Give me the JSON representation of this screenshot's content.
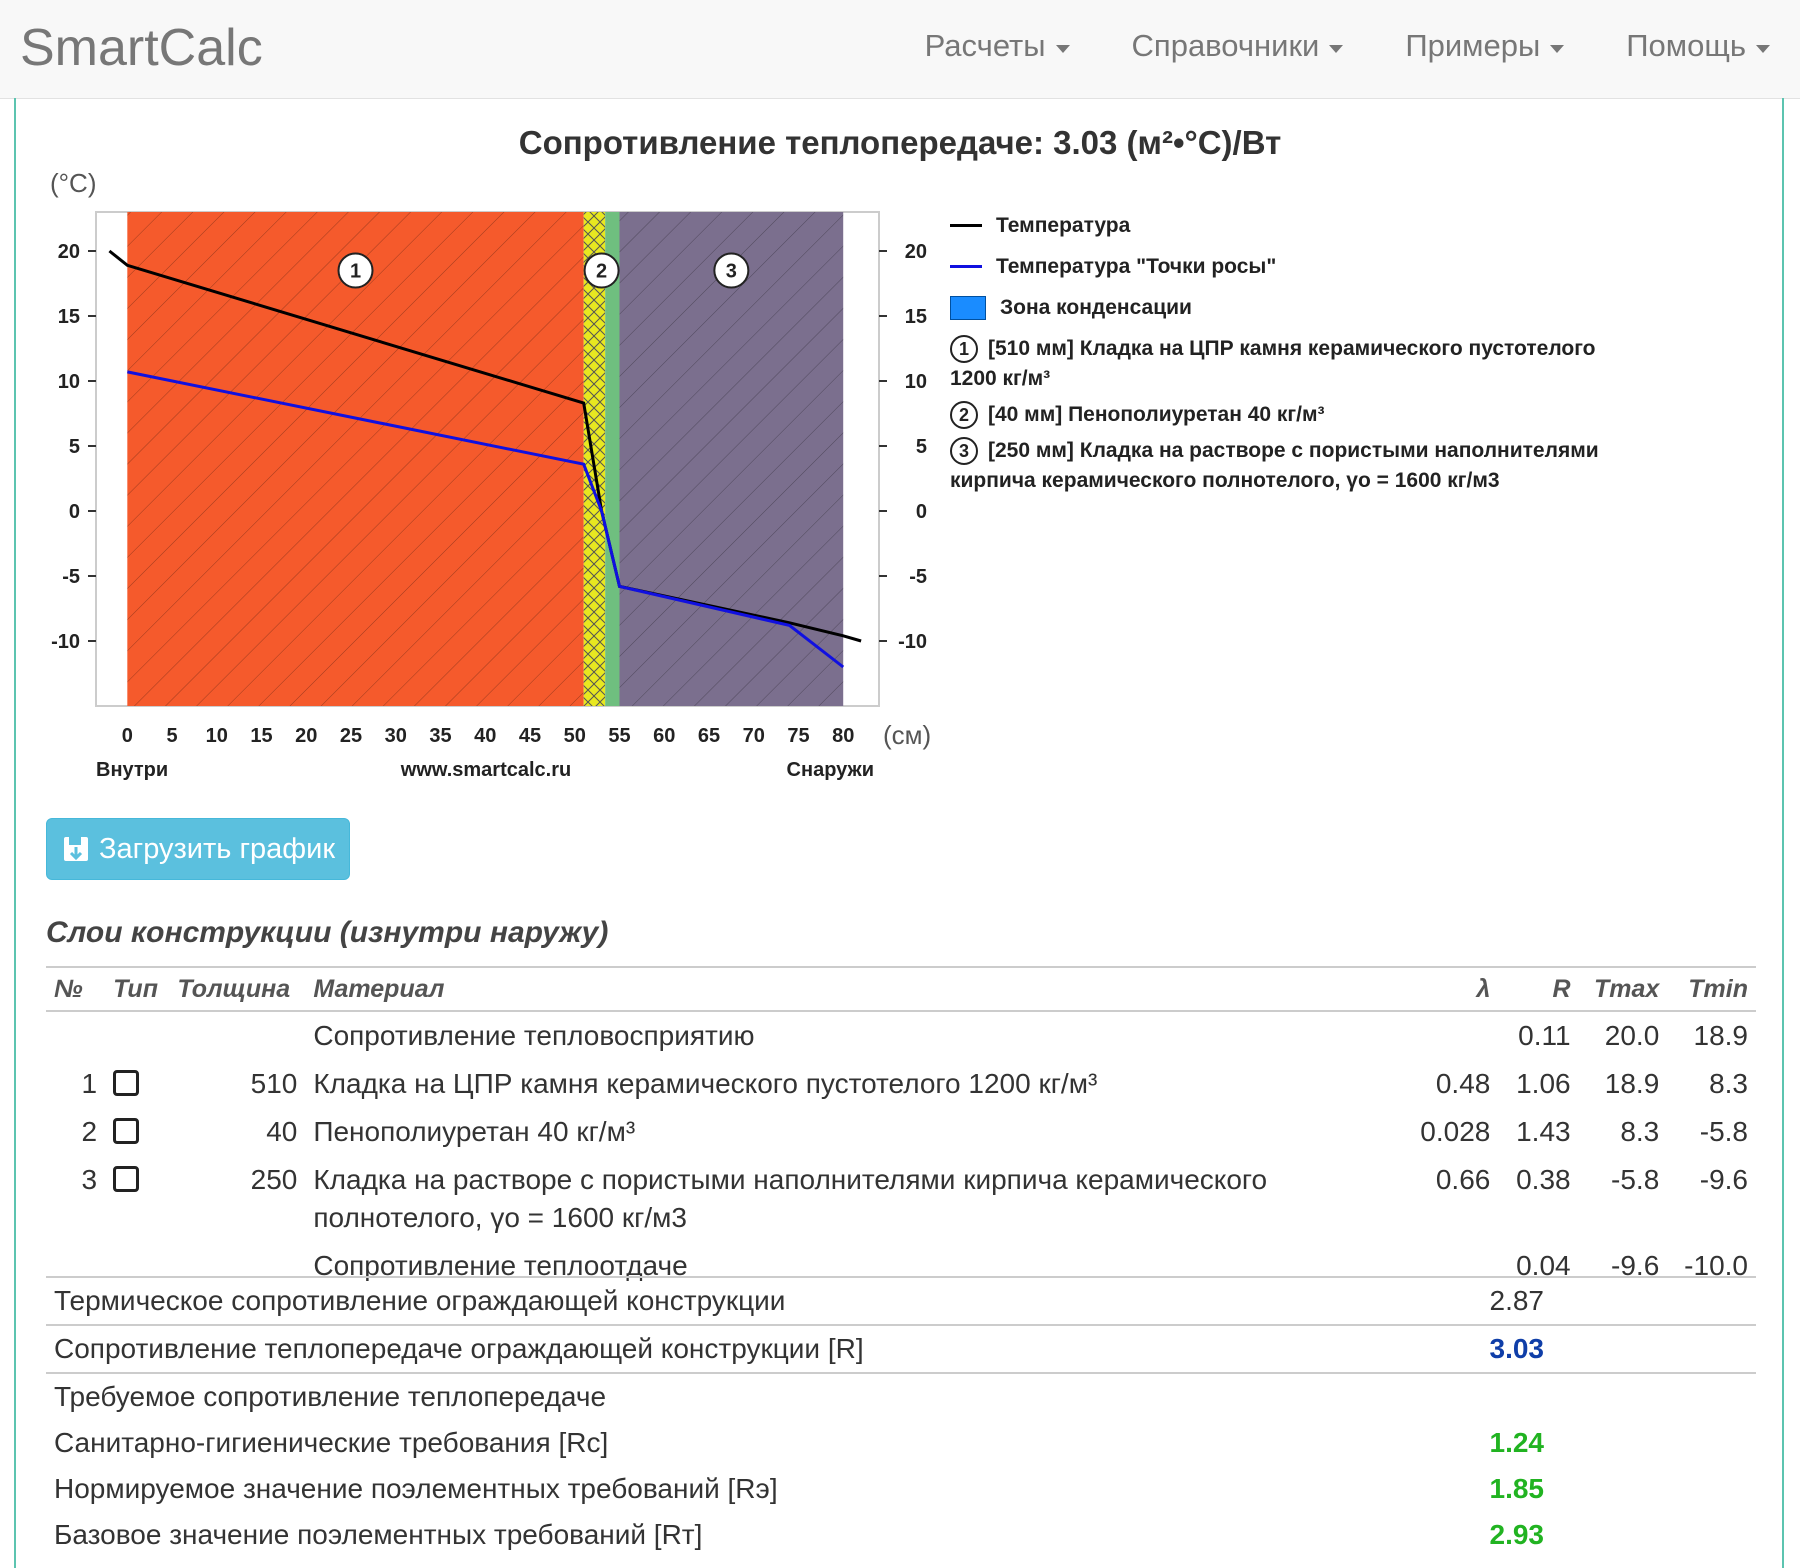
{
  "brand": "SmartCalc",
  "menu": [
    {
      "label": "Расчеты"
    },
    {
      "label": "Справочники"
    },
    {
      "label": "Примеры"
    },
    {
      "label": "Помощь"
    }
  ],
  "chart_title": "Сопротивление теплопередаче: 3.03 (м²•°С)/Вт",
  "chart_data": {
    "type": "line",
    "ylabel": "(°С)",
    "xlabel": "(см)",
    "x_ticks": [
      "0",
      "5",
      "10",
      "15",
      "20",
      "25",
      "30",
      "35",
      "40",
      "45",
      "50",
      "55",
      "60",
      "65",
      "70",
      "75",
      "80"
    ],
    "y_ticks": [
      "20",
      "15",
      "10",
      "5",
      "0",
      "-5",
      "-10"
    ],
    "x_range": [
      -3.5,
      84
    ],
    "y_range": [
      -15,
      23
    ],
    "below_left": "Внутри",
    "below_center": "www.smartcalc.ru",
    "below_right": "Снаружи",
    "layers": [
      {
        "number": "1",
        "from": 0,
        "to": 51,
        "color": "#f55a2c"
      },
      {
        "number": "2",
        "from": 51,
        "to": 55,
        "color": "#e8e820"
      },
      {
        "number": "3",
        "from": 55,
        "to": 80,
        "color": "#7b6f8e"
      }
    ],
    "series": [
      {
        "name": "Температура",
        "color": "#000000",
        "points": [
          [
            -2,
            20
          ],
          [
            0,
            18.9
          ],
          [
            51,
            8.3
          ],
          [
            53,
            0
          ],
          [
            55,
            -5.8
          ],
          [
            74,
            -8.6
          ],
          [
            80,
            -9.6
          ],
          [
            82,
            -10.0
          ]
        ]
      },
      {
        "name": "Температура \"Точки росы\"",
        "color": "#1010e0",
        "points": [
          [
            0,
            10.7
          ],
          [
            51,
            3.6
          ],
          [
            53,
            0
          ],
          [
            55,
            -5.8
          ],
          [
            74,
            -8.8
          ],
          [
            80,
            -12.0
          ]
        ]
      }
    ]
  },
  "legend": {
    "temperature": "Температура",
    "dewpoint": "Температура \"Точки росы\"",
    "condensation": "Зона конденсации",
    "layers": [
      {
        "num": "1",
        "text": "[510 мм] Кладка на ЦПР камня керамического пустотелого 1200 кг/м³"
      },
      {
        "num": "2",
        "text": "[40 мм] Пенополиуретан 40 кг/м³"
      },
      {
        "num": "3",
        "text": "[250 мм] Кладка на растворе с пористыми наполнителями кирпича керамического полнотелого, γо = 1600 кг/м3"
      }
    ]
  },
  "download_label": "Загрузить график",
  "section_title": "Слои конструкции (изнутри наружу)",
  "table": {
    "headers": {
      "no": "№",
      "type": "Тип",
      "thickness": "Толщина",
      "material": "Материал",
      "lambda": "λ",
      "r": "R",
      "tmax": "Tmax",
      "tmin": "Tmin"
    },
    "rows": [
      {
        "no": "",
        "thickness": "",
        "material": "Сопротивление тепловосприятию",
        "lambda": "",
        "r": "0.11",
        "tmax": "20.0",
        "tmin": "18.9"
      },
      {
        "no": "1",
        "thickness": "510",
        "material": "Кладка на ЦПР камня керамического пустотелого 1200 кг/м³",
        "lambda": "0.48",
        "r": "1.06",
        "tmax": "18.9",
        "tmin": "8.3"
      },
      {
        "no": "2",
        "thickness": "40",
        "material": "Пенополиуретан 40 кг/м³",
        "lambda": "0.028",
        "r": "1.43",
        "tmax": "8.3",
        "tmin": "-5.8"
      },
      {
        "no": "3",
        "thickness": "250",
        "material": "Кладка на растворе с пористыми наполнителями кирпича керамического полнотелого, γо = 1600 кг/м3",
        "lambda": "0.66",
        "r": "0.38",
        "tmax": "-5.8",
        "tmin": "-9.6"
      },
      {
        "no": "",
        "thickness": "",
        "material": "Сопротивление теплоотдаче",
        "lambda": "",
        "r": "0.04",
        "tmax": "-9.6",
        "tmin": "-10.0"
      }
    ]
  },
  "summary": {
    "thermal_label": "Термическое сопротивление ограждающей конструкции",
    "thermal_value": "2.87",
    "total_label": "Сопротивление теплопередаче ограждающей конструкции [R]",
    "total_value": "3.03",
    "required_label": "Требуемое сопротивление теплопередаче",
    "sanitary_label": "Санитарно-гигиенические требования [Rc]",
    "sanitary_value": "1.24",
    "norm_label": "Нормируемое значение поэлементных требований [Rэ]",
    "norm_value": "1.85",
    "base_label": "Базовое значение поэлементных требований [Rт]",
    "base_value": "2.93"
  }
}
